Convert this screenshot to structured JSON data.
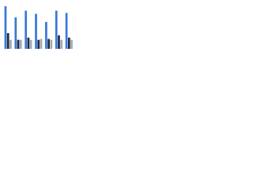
{
  "chart_data": {
    "type": "bar",
    "categories": [
      null,
      null,
      null,
      null,
      null,
      null,
      null
    ],
    "series": [
      {
        "color": "#3a78d8",
        "values": [
          95,
          70,
          85,
          78,
          60,
          85,
          80
        ]
      },
      {
        "color": "#1c2b45",
        "values": [
          35,
          20,
          25,
          20,
          22,
          30,
          25
        ]
      },
      {
        "color": "#a5a9ad",
        "values": [
          20,
          20,
          20,
          22,
          20,
          20,
          20
        ]
      }
    ],
    "ylim": [
      0,
      100
    ]
  }
}
